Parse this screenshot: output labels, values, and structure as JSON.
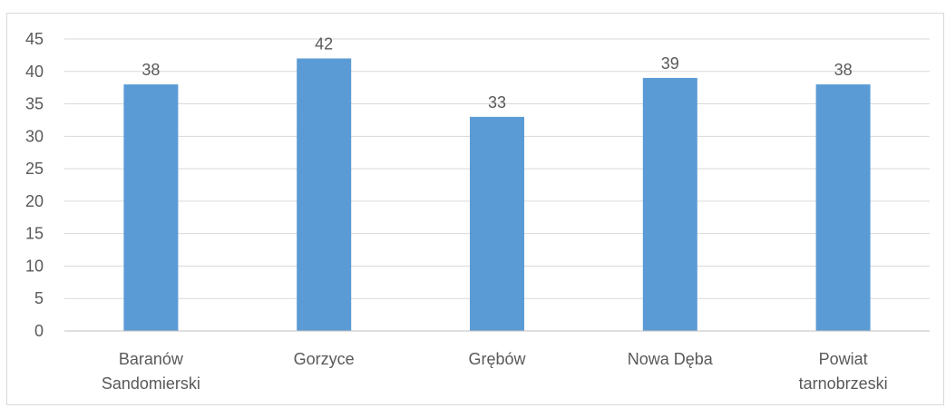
{
  "chart_data": {
    "type": "bar",
    "categories": [
      [
        "Baranów",
        "Sandomierski"
      ],
      [
        "Gorzyce"
      ],
      [
        "Grębów"
      ],
      [
        "Nowa Dęba"
      ],
      [
        "Powiat",
        "tarnobrzeski"
      ]
    ],
    "values": [
      38,
      42,
      33,
      39,
      38
    ],
    "data_labels": [
      "38",
      "42",
      "33",
      "39",
      "38"
    ],
    "y_ticks": [
      "0",
      "5",
      "10",
      "15",
      "20",
      "25",
      "30",
      "35",
      "40",
      "45"
    ],
    "ylim": [
      0,
      45
    ],
    "grid": true,
    "legend": "none",
    "title": "",
    "xlabel": "",
    "ylabel": "",
    "colors": {
      "bar": "#5b9bd5",
      "grid": "#d9d9d9",
      "axis": "#bfbfbf",
      "text": "#595959"
    }
  }
}
